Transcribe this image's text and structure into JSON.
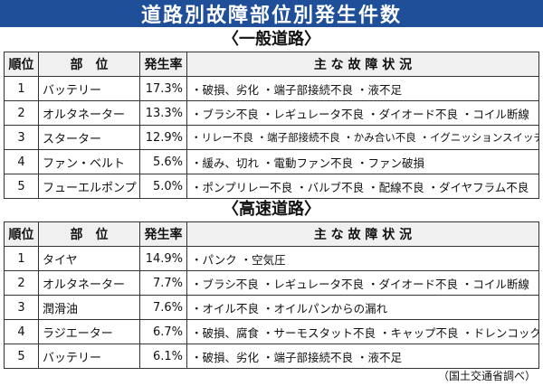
{
  "title": "道路別故障部位別発生件数",
  "headers": {
    "rank": "順位",
    "part": "部　位",
    "rate": "発生率",
    "symptoms": "主 な 故 障 状 況"
  },
  "sections": [
    {
      "title": "〈一般道路〉",
      "rows": [
        {
          "rank": "1",
          "part": "バッテリー",
          "rate": "17.3%",
          "symptoms": "・破損、劣化 ・端子部接続不良 ・液不足"
        },
        {
          "rank": "2",
          "part": "オルタネーター",
          "rate": "13.3%",
          "symptoms": "・ブラシ不良 ・レギュレータ不良 ・ダイオード不良 ・コイル断線"
        },
        {
          "rank": "3",
          "part": "スターター",
          "rate": "12.9%",
          "symptoms": "・リレー不良 ・端子部接続不良 ・かみ合い不良 ・イグニッションスイッチ不良"
        },
        {
          "rank": "4",
          "part": "ファン・ベルト",
          "rate": "5.6%",
          "symptoms": "・緩み、切れ ・電動ファン不良 ・ファン破損"
        },
        {
          "rank": "5",
          "part": "フューエルポンプ",
          "rate": "5.0%",
          "symptoms": "・ポンプリレー不良 ・バルブ不良 ・配線不良 ・ダイヤフラム不良"
        }
      ]
    },
    {
      "title": "〈高速道路〉",
      "rows": [
        {
          "rank": "1",
          "part": "タイヤ",
          "rate": "14.9%",
          "symptoms": "・パンク ・空気圧"
        },
        {
          "rank": "2",
          "part": "オルタネーター",
          "rate": "7.7%",
          "symptoms": "・ブラシ不良 ・レギュレータ不良 ・ダイオード不良 ・コイル断線"
        },
        {
          "rank": "3",
          "part": "潤滑油",
          "rate": "7.6%",
          "symptoms": "・オイル不良 ・オイルパンからの漏れ"
        },
        {
          "rank": "4",
          "part": "ラジエーター",
          "rate": "6.7%",
          "symptoms": "・破損、腐食 ・サーモスタット不良 ・キャップ不良 ・ドレンコック不良"
        },
        {
          "rank": "5",
          "part": "バッテリー",
          "rate": "6.1%",
          "symptoms": "・破損、劣化 ・端子部接続不良 ・液不足"
        }
      ]
    }
  ],
  "source": "（国土交通省調べ）"
}
